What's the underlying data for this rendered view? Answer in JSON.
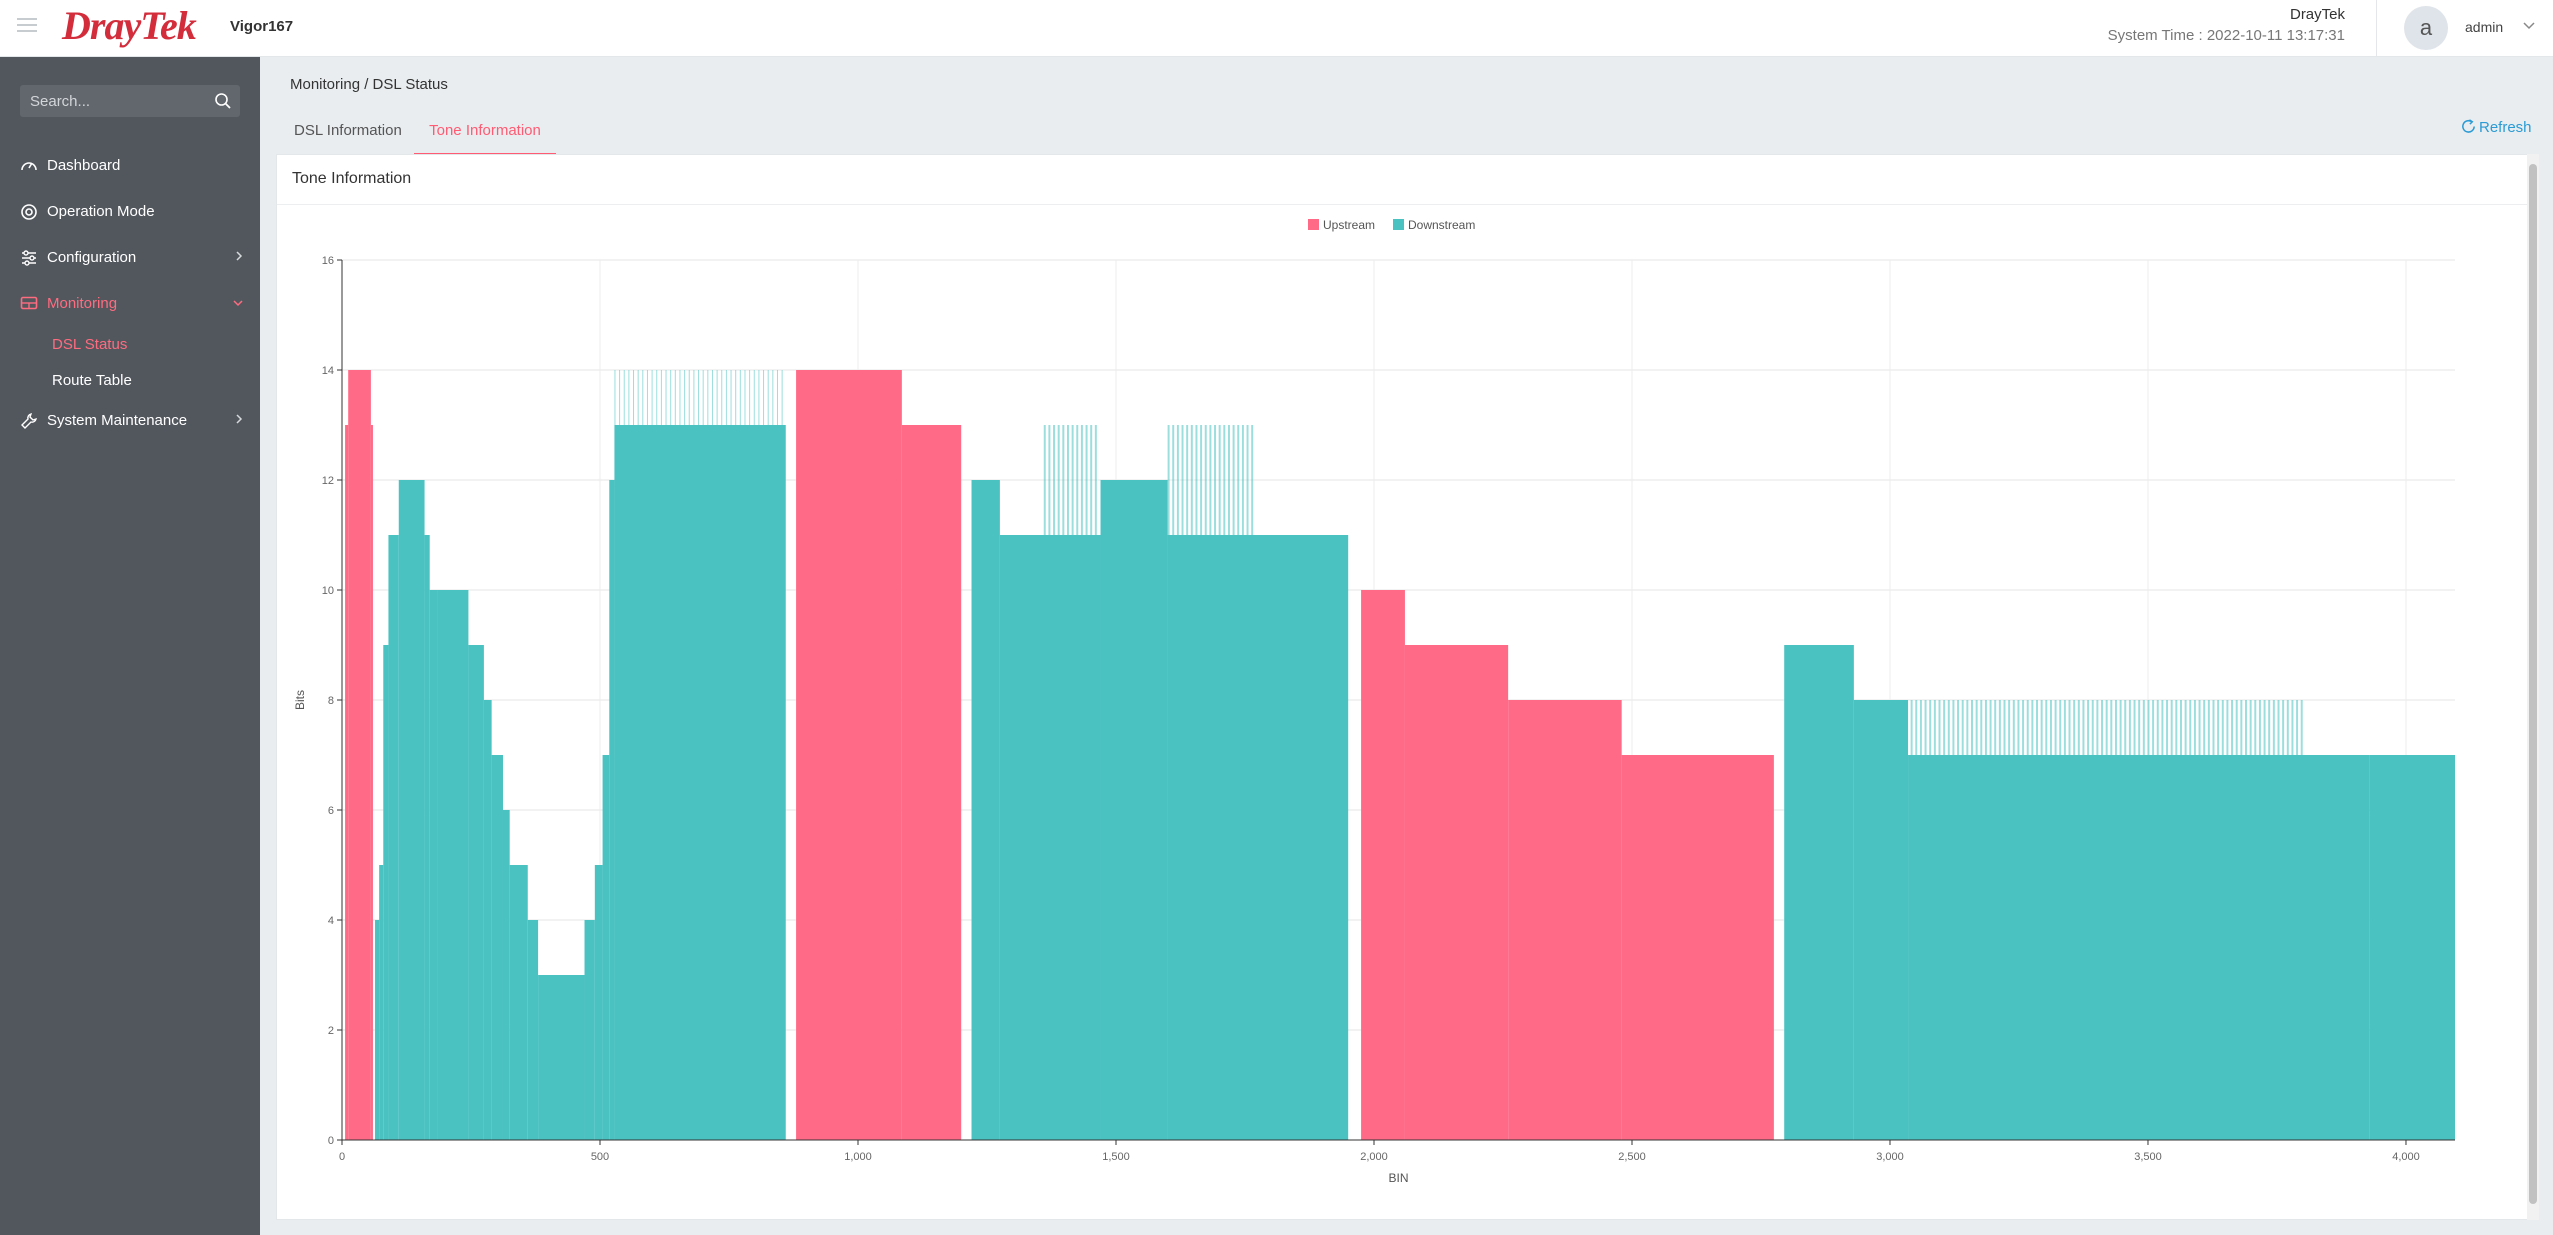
{
  "header": {
    "brand": "DrayTek",
    "model": "Vigor167",
    "device_name": "DrayTek",
    "system_time": "System Time : 2022-10-11 13:17:31",
    "avatar_letter": "a",
    "username": "admin"
  },
  "sidebar": {
    "search_placeholder": "Search...",
    "items": [
      {
        "label": "Dashboard",
        "icon": "gauge-icon"
      },
      {
        "label": "Operation Mode",
        "icon": "operation-mode-icon"
      },
      {
        "label": "Configuration",
        "icon": "sliders-icon"
      },
      {
        "label": "Monitoring",
        "icon": "monitor-icon"
      },
      {
        "label": "System Maintenance",
        "icon": "wrench-icon"
      }
    ],
    "monitoring_sub": [
      {
        "label": "DSL Status"
      },
      {
        "label": "Route Table"
      }
    ]
  },
  "main": {
    "breadcrumb": "Monitoring / DSL Status",
    "tabs": [
      {
        "label": "DSL Information"
      },
      {
        "label": "Tone Information"
      }
    ],
    "refresh_label": "Refresh",
    "panel_title": "Tone Information"
  },
  "colors": {
    "upstream": "#ff6b87",
    "downstream": "#4bc2c2",
    "accent": "#ff5b73",
    "sidebar_bg": "#52575e"
  },
  "chart_data": {
    "type": "bar",
    "xlabel": "BIN",
    "ylabel": "Bits",
    "xlim": [
      0,
      4095
    ],
    "ylim": [
      0,
      16
    ],
    "xticks": [
      0,
      500,
      1000,
      1500,
      2000,
      2500,
      3000,
      3500,
      4000
    ],
    "xtick_labels": [
      "0",
      "500",
      "1,000",
      "1,500",
      "2,000",
      "2,500",
      "3,000",
      "3,500",
      "4,000"
    ],
    "yticks": [
      0,
      2,
      4,
      6,
      8,
      10,
      12,
      14,
      16
    ],
    "grid": true,
    "legend_position": "top-center",
    "series": [
      {
        "name": "Upstream",
        "segments": [
          {
            "from": 6,
            "to": 12,
            "bits": 13
          },
          {
            "from": 12,
            "to": 56,
            "bits": 14
          },
          {
            "from": 56,
            "to": 60,
            "bits": 13
          },
          {
            "from": 880,
            "to": 1085,
            "bits": 14
          },
          {
            "from": 1085,
            "to": 1200,
            "bits": 13
          },
          {
            "from": 1975,
            "to": 2060,
            "bits": 10
          },
          {
            "from": 2060,
            "to": 2260,
            "bits": 9
          },
          {
            "from": 2260,
            "to": 2480,
            "bits": 8
          },
          {
            "from": 2480,
            "to": 2775,
            "bits": 7
          }
        ]
      },
      {
        "name": "Downstream",
        "segments": [
          {
            "from": 64,
            "to": 72,
            "bits": 4
          },
          {
            "from": 72,
            "to": 80,
            "bits": 5
          },
          {
            "from": 80,
            "to": 90,
            "bits": 9
          },
          {
            "from": 90,
            "to": 110,
            "bits": 11
          },
          {
            "from": 110,
            "to": 160,
            "bits": 12
          },
          {
            "from": 160,
            "to": 170,
            "bits": 11
          },
          {
            "from": 170,
            "to": 185,
            "bits": 10
          },
          {
            "from": 185,
            "to": 245,
            "bits": 10
          },
          {
            "from": 245,
            "to": 275,
            "bits": 9
          },
          {
            "from": 275,
            "to": 290,
            "bits": 8
          },
          {
            "from": 290,
            "to": 312,
            "bits": 7
          },
          {
            "from": 312,
            "to": 325,
            "bits": 6
          },
          {
            "from": 325,
            "to": 360,
            "bits": 5
          },
          {
            "from": 360,
            "to": 380,
            "bits": 4
          },
          {
            "from": 380,
            "to": 470,
            "bits": 3
          },
          {
            "from": 470,
            "to": 490,
            "bits": 4
          },
          {
            "from": 490,
            "to": 505,
            "bits": 5
          },
          {
            "from": 505,
            "to": 518,
            "bits": 7
          },
          {
            "from": 518,
            "to": 528,
            "bits": 12
          },
          {
            "from": 528,
            "to": 860,
            "bits": 13
          },
          {
            "from": 1220,
            "to": 1275,
            "bits": 12
          },
          {
            "from": 1275,
            "to": 1470,
            "bits": 11
          },
          {
            "from": 1470,
            "to": 1600,
            "bits": 12
          },
          {
            "from": 1600,
            "to": 1950,
            "bits": 11
          },
          {
            "from": 2795,
            "to": 2930,
            "bits": 9
          },
          {
            "from": 2930,
            "to": 3035,
            "bits": 8
          },
          {
            "from": 3035,
            "to": 3930,
            "bits": 7
          },
          {
            "from": 3930,
            "to": 4095,
            "bits": 7
          }
        ],
        "spikes": [
          {
            "from": 528,
            "to": 860,
            "bits": 14
          },
          {
            "from": 1360,
            "to": 1460,
            "bits": 13
          },
          {
            "from": 1600,
            "to": 1770,
            "bits": 13
          },
          {
            "from": 3040,
            "to": 3800,
            "bits": 8
          }
        ]
      }
    ]
  }
}
